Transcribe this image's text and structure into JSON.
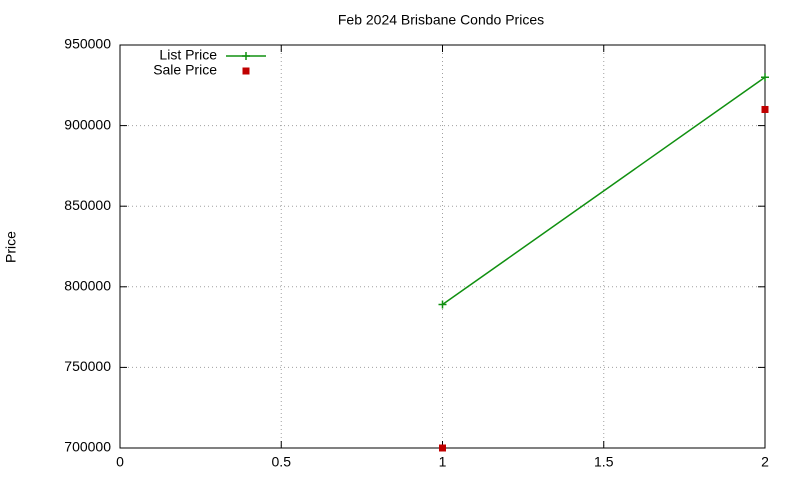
{
  "chart_data": {
    "type": "line",
    "title": "Feb 2024 Brisbane Condo Prices",
    "y_label": "Price",
    "x": [
      1,
      2
    ],
    "series": [
      {
        "name": "List Price",
        "color": "#109010",
        "mode": "linespoints",
        "values": [
          789000,
          930000
        ]
      },
      {
        "name": "Sale Price",
        "color": "#c00000",
        "mode": "points",
        "values": [
          700000,
          910000
        ]
      }
    ],
    "xlim": [
      0,
      2
    ],
    "xticks": [
      0,
      0.5,
      1,
      1.5,
      2
    ],
    "ylim": [
      700000,
      950000
    ],
    "yticks": [
      700000,
      750000,
      800000,
      850000,
      900000,
      950000
    ],
    "grid": true,
    "legend": "top-left"
  }
}
